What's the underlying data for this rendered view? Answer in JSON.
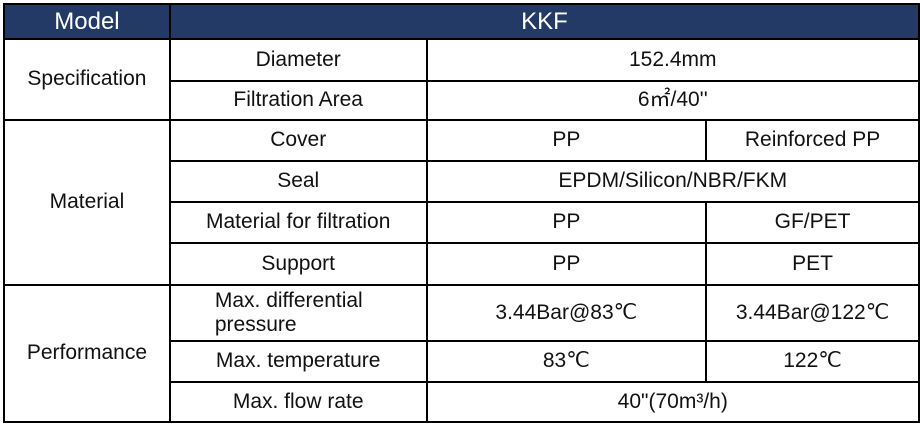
{
  "header": {
    "model_label": "Model",
    "model_value": "KKF"
  },
  "sections": [
    {
      "name": "Specification",
      "rows": [
        {
          "label": "Diameter",
          "values": [
            "152.4mm"
          ]
        },
        {
          "label": "Filtration Area",
          "values": [
            "6㎡/40''"
          ]
        }
      ]
    },
    {
      "name": "Material",
      "rows": [
        {
          "label": "Cover",
          "values": [
            "PP",
            "Reinforced PP"
          ]
        },
        {
          "label": "Seal",
          "values": [
            "EPDM/Silicon/NBR/FKM"
          ]
        },
        {
          "label": "Material for filtration",
          "values": [
            "PP",
            "GF/PET"
          ]
        },
        {
          "label": "Support",
          "values": [
            "PP",
            "PET"
          ]
        }
      ]
    },
    {
      "name": "Performance",
      "rows": [
        {
          "label": "Max. differential pressure",
          "values": [
            "3.44Bar@83℃",
            "3.44Bar@122℃"
          ]
        },
        {
          "label": "Max. temperature",
          "values": [
            "83℃",
            "122℃"
          ]
        },
        {
          "label": "Max. flow rate",
          "values": [
            "40\"(70m³/h)"
          ]
        }
      ]
    }
  ],
  "colors": {
    "header_bg": "#233a66",
    "header_text": "#ffffff",
    "border": "#000000"
  }
}
